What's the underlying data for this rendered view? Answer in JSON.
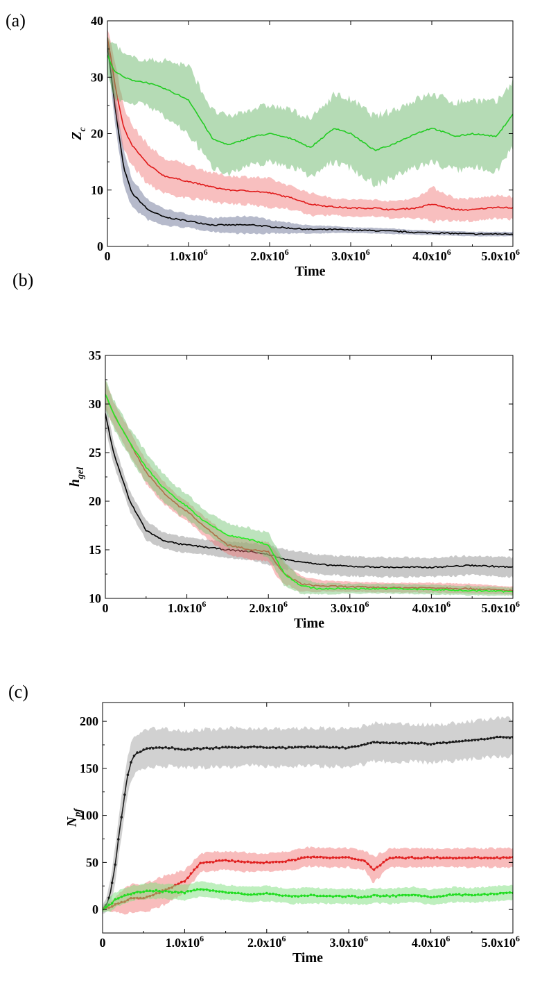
{
  "chart_data": [
    {
      "panel_label": "(a)",
      "type": "line",
      "xlabel": "Time",
      "ylabel": "Z",
      "ylabel_sub": "c",
      "xlim": [
        0,
        5000000
      ],
      "ylim": [
        0,
        40
      ],
      "xticks": [
        0,
        1000000,
        2000000,
        3000000,
        4000000,
        5000000
      ],
      "xtick_labels": [
        "0",
        "1.0x10",
        "2.0x10",
        "3.0x10",
        "4.0x10",
        "5.0x10"
      ],
      "xtick_sup": [
        "",
        "6",
        "6",
        "6",
        "6",
        "6"
      ],
      "yticks": [
        0,
        10,
        20,
        30,
        40
      ],
      "ytick_labels": [
        "0",
        "10",
        "20",
        "30",
        "40"
      ],
      "x": [
        0,
        50000,
        100000,
        200000,
        300000,
        500000,
        700000,
        1000000,
        1300000,
        1500000,
        1800000,
        2000000,
        2300000,
        2500000,
        2800000,
        3000000,
        3300000,
        3500000,
        3800000,
        4000000,
        4300000,
        4500000,
        4800000,
        5000000
      ],
      "series": [
        {
          "line_color": "#000000",
          "band_color": "#2e3a6b",
          "band_opacity": 0.35,
          "values": [
            36,
            30,
            24,
            14,
            9.5,
            6.5,
            5.2,
            4.5,
            3.8,
            3.8,
            3.8,
            3.5,
            3.2,
            3.0,
            3.0,
            2.9,
            2.8,
            2.7,
            2.5,
            2.4,
            2.3,
            2.2,
            2.2,
            2.2
          ],
          "band": [
            1.5,
            2.5,
            3.0,
            3.0,
            2.5,
            1.8,
            1.5,
            1.2,
            1.2,
            1.4,
            1.6,
            1.2,
            0.9,
            0.7,
            0.6,
            0.5,
            0.5,
            0.5,
            0.4,
            0.4,
            0.4,
            0.4,
            0.4,
            0.4
          ]
        },
        {
          "line_color": "#e01818",
          "band_color": "#f07070",
          "band_opacity": 0.45,
          "values": [
            37,
            33,
            28,
            21,
            18,
            14.5,
            12.5,
            11.5,
            10.5,
            10.0,
            9.8,
            9.5,
            8.5,
            7.5,
            7.0,
            6.8,
            6.8,
            6.5,
            6.8,
            7.5,
            6.5,
            6.5,
            7.0,
            6.8
          ],
          "band": [
            1.5,
            3.0,
            4.0,
            4.0,
            3.5,
            3.5,
            3.0,
            3.0,
            2.5,
            2.5,
            2.5,
            2.5,
            2.0,
            2.0,
            1.5,
            1.5,
            1.5,
            1.5,
            1.8,
            3.0,
            2.0,
            2.0,
            2.0,
            2.0
          ]
        },
        {
          "line_color": "#22cc22",
          "band_color": "#6bb86b",
          "band_opacity": 0.5,
          "values": [
            34,
            32,
            31,
            30,
            29.5,
            29,
            28,
            26,
            19,
            18,
            19.5,
            20,
            19,
            17.5,
            21,
            20,
            17,
            18,
            20,
            21,
            19.5,
            20,
            19.5,
            23.5
          ],
          "band": [
            3,
            4,
            5,
            4,
            4,
            4,
            5,
            6,
            5,
            5,
            5,
            5,
            5,
            5,
            6,
            6,
            6,
            6,
            6,
            6,
            6,
            6,
            6,
            6
          ]
        }
      ]
    },
    {
      "panel_label": "(b)",
      "type": "line",
      "xlabel": "Time",
      "ylabel": "h",
      "ylabel_sub": "gel",
      "xlim": [
        0,
        5000000
      ],
      "ylim": [
        10,
        35
      ],
      "xticks": [
        0,
        1000000,
        2000000,
        3000000,
        4000000,
        5000000
      ],
      "xtick_labels": [
        "0",
        "1.0x10",
        "2.0x10",
        "3.0x10",
        "4.0x10",
        "5.0x10"
      ],
      "xtick_sup": [
        "",
        "6",
        "6",
        "6",
        "6",
        "6"
      ],
      "yticks": [
        10,
        15,
        20,
        25,
        30,
        35
      ],
      "ytick_labels": [
        "10",
        "15",
        "20",
        "25",
        "30",
        "35"
      ],
      "x": [
        0,
        100000,
        200000,
        300000,
        500000,
        700000,
        900000,
        1000000,
        1200000,
        1500000,
        1800000,
        2000000,
        2100000,
        2200000,
        2400000,
        2600000,
        3000000,
        3500000,
        4000000,
        4500000,
        5000000
      ],
      "series": [
        {
          "line_color": "#000000",
          "band_color": "#9a9a9a",
          "band_opacity": 0.55,
          "values": [
            29,
            25,
            22.5,
            20,
            17,
            16,
            15.6,
            15.5,
            15.3,
            15,
            14.8,
            14.5,
            14.3,
            14.0,
            13.8,
            13.5,
            13.3,
            13.2,
            13.2,
            13.4,
            13.2
          ],
          "band": [
            1.5,
            1.2,
            1.0,
            1.0,
            1.0,
            0.8,
            0.8,
            0.8,
            0.8,
            0.8,
            0.9,
            1.0,
            1.0,
            1.0,
            1.0,
            1.0,
            1.0,
            1.0,
            1.0,
            1.0,
            1.0
          ]
        },
        {
          "line_color": "#e01818",
          "band_color": "#f07070",
          "band_opacity": 0.45,
          "values": [
            31,
            29,
            27.5,
            26,
            23,
            21,
            19.5,
            19,
            17.5,
            15.5,
            15.0,
            14.8,
            13.5,
            12.5,
            11.5,
            11.3,
            11.2,
            11.1,
            11.1,
            11.0,
            10.8
          ],
          "band": [
            1.5,
            1.2,
            1.2,
            1.2,
            1.2,
            1.2,
            1.0,
            1.0,
            1.0,
            1.0,
            1.0,
            1.0,
            1.2,
            1.0,
            0.8,
            0.6,
            0.5,
            0.5,
            0.5,
            0.5,
            0.4
          ]
        },
        {
          "line_color": "#22ee22",
          "band_color": "#7cc87c",
          "band_opacity": 0.5,
          "values": [
            31,
            29,
            27.5,
            26,
            23.5,
            21.5,
            20,
            19.5,
            18,
            16.5,
            16.0,
            15.5,
            14.0,
            12.5,
            11.3,
            11.0,
            11.0,
            11.0,
            10.9,
            10.8,
            10.7
          ],
          "band": [
            1.5,
            1.5,
            1.5,
            1.5,
            1.5,
            1.5,
            1.3,
            1.3,
            1.2,
            1.2,
            1.2,
            1.2,
            1.3,
            1.2,
            0.8,
            0.6,
            0.5,
            0.5,
            0.5,
            0.5,
            0.4
          ]
        }
      ]
    },
    {
      "panel_label": "(c)",
      "type": "line",
      "xlabel": "Time",
      "ylabel": "N",
      "ylabel_sub": "pf",
      "xlim": [
        0,
        5000000
      ],
      "ylim": [
        -25,
        220
      ],
      "xticks": [
        0,
        1000000,
        2000000,
        3000000,
        4000000,
        5000000
      ],
      "xtick_labels": [
        "0",
        "1.0x10",
        "2.0x10",
        "3.0x10",
        "4.0x10",
        "5.0x10"
      ],
      "xtick_sup": [
        "",
        "6",
        "6",
        "6",
        "6",
        "6"
      ],
      "yticks": [
        0,
        50,
        100,
        150,
        200
      ],
      "ytick_labels": [
        "0",
        "50",
        "100",
        "150",
        "200"
      ],
      "x": [
        0,
        50000,
        100000,
        150000,
        200000,
        250000,
        300000,
        350000,
        400000,
        500000,
        600000,
        800000,
        1000000,
        1200000,
        1500000,
        1800000,
        2000000,
        2300000,
        2500000,
        2800000,
        3000000,
        3200000,
        3300000,
        3500000,
        3800000,
        4000000,
        4300000,
        4500000,
        4800000,
        5000000
      ],
      "series": [
        {
          "line_color": "#1a1a1a",
          "band_color": "#bdbdbd",
          "band_opacity": 0.7,
          "values": [
            0,
            5,
            20,
            45,
            80,
            110,
            140,
            158,
            165,
            170,
            172,
            172,
            170,
            171,
            172,
            173,
            172,
            172,
            173,
            172,
            172,
            175,
            178,
            177,
            177,
            176,
            178,
            180,
            183,
            183
          ],
          "band": [
            5,
            8,
            15,
            20,
            20,
            20,
            20,
            20,
            20,
            20,
            20,
            20,
            20,
            20,
            20,
            20,
            20,
            20,
            20,
            20,
            20,
            20,
            20,
            20,
            20,
            20,
            20,
            20,
            20,
            20
          ]
        },
        {
          "line_color": "#e02020",
          "band_color": "#f06a6a",
          "band_opacity": 0.45,
          "values": [
            0,
            2,
            3,
            5,
            7,
            8,
            10,
            12,
            12,
            12,
            15,
            22,
            30,
            50,
            52,
            50,
            50,
            52,
            56,
            55,
            55,
            52,
            42,
            55,
            55,
            55,
            55,
            55,
            55,
            55
          ],
          "band": [
            2,
            3,
            5,
            8,
            10,
            12,
            15,
            15,
            15,
            15,
            15,
            15,
            12,
            10,
            10,
            10,
            10,
            10,
            10,
            10,
            10,
            10,
            14,
            10,
            10,
            10,
            10,
            10,
            10,
            10
          ]
        },
        {
          "line_color": "#22dd22",
          "band_color": "#7ee07e",
          "band_opacity": 0.5,
          "values": [
            0,
            3,
            6,
            10,
            12,
            14,
            15,
            17,
            18,
            19,
            20,
            19,
            18,
            22,
            18,
            16,
            17,
            14,
            15,
            14,
            14,
            13,
            15,
            14,
            16,
            13,
            16,
            15,
            17,
            18
          ],
          "band": [
            3,
            5,
            8,
            8,
            8,
            8,
            8,
            8,
            8,
            8,
            8,
            8,
            8,
            8,
            8,
            8,
            8,
            8,
            8,
            8,
            8,
            8,
            8,
            8,
            8,
            8,
            8,
            8,
            8,
            8
          ]
        }
      ]
    }
  ]
}
